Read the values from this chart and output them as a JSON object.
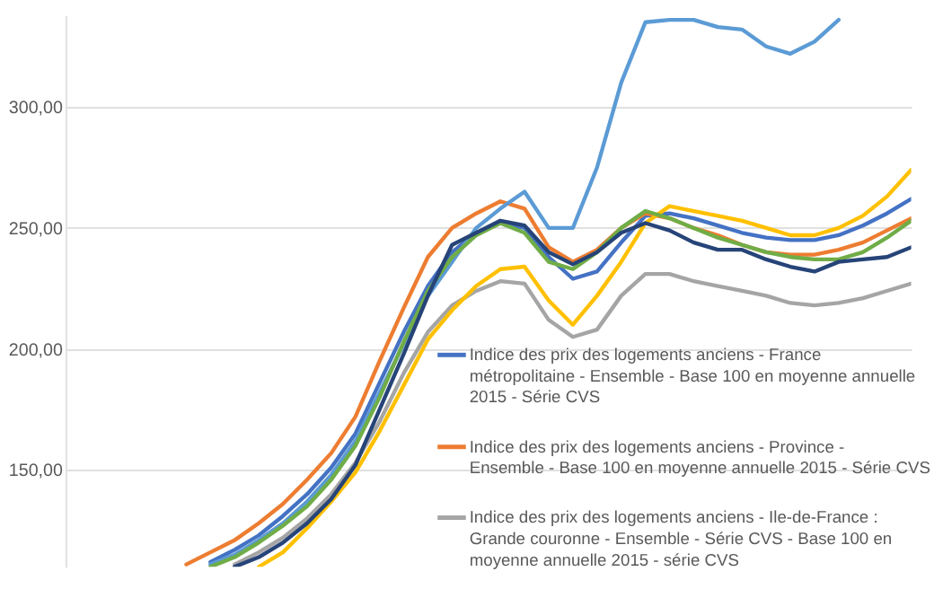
{
  "chart_data": {
    "type": "line",
    "categories": [
      null,
      null,
      null,
      null,
      null,
      null,
      null,
      null,
      null,
      null,
      null,
      null,
      null,
      null,
      null,
      null,
      null,
      null,
      null,
      null,
      null,
      null,
      null,
      null,
      null,
      null,
      null,
      null,
      null,
      null,
      null,
      null,
      null,
      null,
      null,
      null
    ],
    "series": [
      {
        "name": "Indice des prix des logements anciens - France métropolitaine - Ensemble - Base 100 en moyenne annuelle 2015 - Série CVS",
        "color": "#4472c4",
        "values": [
          null,
          null,
          null,
          null,
          null,
          null,
          112,
          117,
          123,
          131,
          140,
          151,
          165,
          186,
          207,
          226,
          240,
          248,
          252,
          250,
          238,
          229,
          232,
          244,
          255,
          256,
          254,
          251,
          248,
          246,
          245,
          245,
          247,
          251,
          256,
          262
        ]
      },
      {
        "name": "Indice des prix des logements anciens - Province - Ensemble - Base 100 en moyenne annuelle 2015 - Série CVS",
        "color": "#ed7d31",
        "values": [
          null,
          null,
          null,
          null,
          null,
          111,
          116,
          121,
          128,
          136,
          146,
          157,
          172,
          195,
          217,
          238,
          250,
          256,
          261,
          258,
          242,
          236,
          241,
          250,
          256,
          254,
          250,
          247,
          243,
          240,
          239,
          239,
          241,
          244,
          249,
          254
        ]
      },
      {
        "name": "Indice des prix des logements anciens - Ile-de-France : Grande couronne - Ensemble - Série CVS - Base 100 en moyenne annuelle 2015 - série CVS",
        "color": "#a5a5a5",
        "values": [
          null,
          null,
          null,
          null,
          null,
          null,
          null,
          111,
          116,
          122,
          130,
          140,
          153,
          170,
          190,
          207,
          218,
          224,
          228,
          227,
          212,
          205,
          208,
          222,
          231,
          231,
          228,
          226,
          224,
          222,
          219,
          218,
          219,
          221,
          224,
          227
        ]
      },
      {
        "color": "#ffc000",
        "values": [
          null,
          null,
          null,
          null,
          null,
          null,
          null,
          null,
          110,
          116,
          126,
          137,
          149,
          166,
          185,
          204,
          216,
          226,
          233,
          234,
          220,
          210,
          222,
          236,
          252,
          259,
          257,
          255,
          253,
          250,
          247,
          247,
          250,
          255,
          263,
          274
        ]
      },
      {
        "color": "#5b9bd5",
        "values": [
          null,
          null,
          null,
          null,
          null,
          null,
          111,
          115,
          121,
          128,
          137,
          148,
          162,
          182,
          202,
          222,
          236,
          250,
          258,
          265,
          250,
          250,
          275,
          310,
          335,
          336,
          336,
          333,
          332,
          325,
          322,
          327,
          336,
          null,
          null,
          null
        ]
      },
      {
        "color": "#70ad47",
        "values": [
          null,
          null,
          null,
          null,
          null,
          null,
          110,
          114,
          120,
          127,
          135,
          146,
          160,
          180,
          203,
          224,
          238,
          247,
          252,
          248,
          236,
          233,
          240,
          250,
          257,
          254,
          250,
          246,
          243,
          240,
          238,
          237,
          237,
          240,
          246,
          253
        ]
      },
      {
        "color": "#264478",
        "values": [
          null,
          null,
          null,
          null,
          null,
          null,
          null,
          110,
          114,
          120,
          128,
          138,
          152,
          175,
          198,
          222,
          243,
          248,
          253,
          251,
          240,
          235,
          240,
          248,
          252,
          249,
          244,
          241,
          241,
          237,
          234,
          232,
          236,
          237,
          238,
          242
        ]
      }
    ],
    "ylim": [
      110,
      338
    ],
    "yticks": [
      {
        "value": 150,
        "label": "150,00"
      },
      {
        "value": 200,
        "label": "200,00"
      },
      {
        "value": 250,
        "label": "250,00"
      },
      {
        "value": 300,
        "label": "300,00"
      }
    ],
    "grid": "y",
    "tick_labels": "y",
    "legend": "bottom right",
    "line_style": "solid",
    "marker": "none"
  }
}
